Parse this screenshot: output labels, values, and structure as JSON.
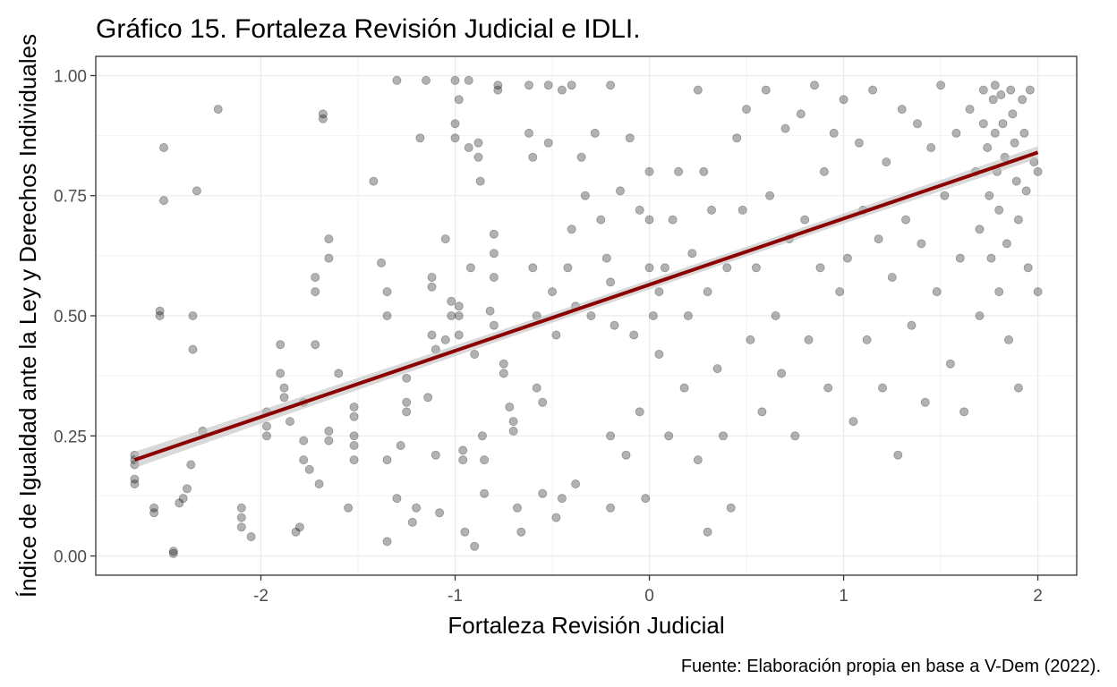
{
  "chart_data": {
    "type": "scatter",
    "title": "Gráfico 15. Fortaleza Revisión Judicial e IDLI.",
    "xlabel": "Fortaleza Revisión Judicial",
    "ylabel": "Índice de Igualdad ante la Ley y Derechos Individuales",
    "caption": "Fuente: Elaboración propia en base a V-Dem (2022).",
    "xlim": [
      -2.85,
      2.2
    ],
    "ylim": [
      -0.04,
      1.04
    ],
    "x_ticks": [
      -2,
      -1,
      0,
      1,
      2
    ],
    "x_tick_labels": [
      "-2",
      "-1",
      "0",
      "1",
      "2"
    ],
    "y_ticks": [
      0,
      0.25,
      0.5,
      0.75,
      1.0
    ],
    "y_tick_labels": [
      "0.00",
      "0.25",
      "0.50",
      "0.75",
      "1.00"
    ],
    "grid": true,
    "point_color": "#000000",
    "point_opacity": 0.3,
    "trend_line": {
      "method": "lm",
      "x": [
        -2.65,
        2.0
      ],
      "y": [
        0.2,
        0.84
      ],
      "color": "#8b0000",
      "ci_color": "#bfbfbf"
    },
    "points": [
      [
        -2.65,
        0.21
      ],
      [
        -2.65,
        0.19
      ],
      [
        -2.65,
        0.15
      ],
      [
        -2.65,
        0.16
      ],
      [
        -2.65,
        0.2
      ],
      [
        -2.55,
        0.1
      ],
      [
        -2.55,
        0.09
      ],
      [
        -2.52,
        0.5
      ],
      [
        -2.52,
        0.51
      ],
      [
        -2.5,
        0.85
      ],
      [
        -2.5,
        0.74
      ],
      [
        -2.45,
        0.01
      ],
      [
        -2.45,
        0.005
      ],
      [
        -2.42,
        0.11
      ],
      [
        -2.4,
        0.12
      ],
      [
        -2.38,
        0.14
      ],
      [
        -2.36,
        0.19
      ],
      [
        -2.35,
        0.5
      ],
      [
        -2.35,
        0.43
      ],
      [
        -2.33,
        0.76
      ],
      [
        -2.3,
        0.26
      ],
      [
        -2.22,
        0.93
      ],
      [
        -2.1,
        0.1
      ],
      [
        -2.1,
        0.08
      ],
      [
        -2.1,
        0.06
      ],
      [
        -2.05,
        0.04
      ],
      [
        -1.97,
        0.3
      ],
      [
        -1.97,
        0.27
      ],
      [
        -1.97,
        0.25
      ],
      [
        -1.9,
        0.44
      ],
      [
        -1.9,
        0.38
      ],
      [
        -1.88,
        0.35
      ],
      [
        -1.88,
        0.33
      ],
      [
        -1.85,
        0.28
      ],
      [
        -1.82,
        0.05
      ],
      [
        -1.8,
        0.06
      ],
      [
        -1.78,
        0.32
      ],
      [
        -1.78,
        0.2
      ],
      [
        -1.78,
        0.24
      ],
      [
        -1.75,
        0.18
      ],
      [
        -1.72,
        0.44
      ],
      [
        -1.72,
        0.55
      ],
      [
        -1.72,
        0.58
      ],
      [
        -1.7,
        0.15
      ],
      [
        -1.68,
        0.91
      ],
      [
        -1.68,
        0.92
      ],
      [
        -1.65,
        0.62
      ],
      [
        -1.65,
        0.66
      ],
      [
        -1.65,
        0.26
      ],
      [
        -1.65,
        0.24
      ],
      [
        -1.6,
        0.38
      ],
      [
        -1.55,
        0.1
      ],
      [
        -1.52,
        0.29
      ],
      [
        -1.52,
        0.31
      ],
      [
        -1.52,
        0.25
      ],
      [
        -1.52,
        0.2
      ],
      [
        -1.52,
        0.23
      ],
      [
        -1.42,
        0.78
      ],
      [
        -1.38,
        0.61
      ],
      [
        -1.35,
        0.5
      ],
      [
        -1.35,
        0.55
      ],
      [
        -1.35,
        0.2
      ],
      [
        -1.35,
        0.03
      ],
      [
        -1.3,
        0.99
      ],
      [
        -1.3,
        0.12
      ],
      [
        -1.28,
        0.23
      ],
      [
        -1.25,
        0.32
      ],
      [
        -1.25,
        0.37
      ],
      [
        -1.25,
        0.3
      ],
      [
        -1.22,
        0.07
      ],
      [
        -1.2,
        0.1
      ],
      [
        -1.18,
        0.87
      ],
      [
        -1.15,
        0.99
      ],
      [
        -1.14,
        0.33
      ],
      [
        -1.12,
        0.58
      ],
      [
        -1.12,
        0.56
      ],
      [
        -1.12,
        0.46
      ],
      [
        -1.1,
        0.43
      ],
      [
        -1.1,
        0.21
      ],
      [
        -1.08,
        0.09
      ],
      [
        -1.05,
        0.66
      ],
      [
        -1.05,
        0.45
      ],
      [
        -1.02,
        0.53
      ],
      [
        -1.02,
        0.5
      ],
      [
        -1.0,
        0.99
      ],
      [
        -1.0,
        0.9
      ],
      [
        -1.0,
        0.87
      ],
      [
        -0.98,
        0.95
      ],
      [
        -0.98,
        0.52
      ],
      [
        -0.98,
        0.5
      ],
      [
        -0.98,
        0.46
      ],
      [
        -0.96,
        0.22
      ],
      [
        -0.96,
        0.2
      ],
      [
        -0.95,
        0.05
      ],
      [
        -0.93,
        0.99
      ],
      [
        -0.93,
        0.85
      ],
      [
        -0.92,
        0.6
      ],
      [
        -0.9,
        0.42
      ],
      [
        -0.9,
        0.02
      ],
      [
        -0.88,
        0.86
      ],
      [
        -0.88,
        0.83
      ],
      [
        -0.87,
        0.78
      ],
      [
        -0.86,
        0.25
      ],
      [
        -0.85,
        0.2
      ],
      [
        -0.85,
        0.13
      ],
      [
        -0.82,
        0.51
      ],
      [
        -0.8,
        0.48
      ],
      [
        -0.8,
        0.58
      ],
      [
        -0.8,
        0.63
      ],
      [
        -0.8,
        0.67
      ],
      [
        -0.78,
        0.98
      ],
      [
        -0.78,
        0.97
      ],
      [
        -0.75,
        0.4
      ],
      [
        -0.75,
        0.38
      ],
      [
        -0.72,
        0.31
      ],
      [
        -0.7,
        0.28
      ],
      [
        -0.7,
        0.26
      ],
      [
        -0.68,
        0.1
      ],
      [
        -0.66,
        0.05
      ],
      [
        -0.62,
        0.98
      ],
      [
        -0.62,
        0.88
      ],
      [
        -0.6,
        0.83
      ],
      [
        -0.6,
        0.6
      ],
      [
        -0.58,
        0.5
      ],
      [
        -0.58,
        0.35
      ],
      [
        -0.55,
        0.32
      ],
      [
        -0.55,
        0.13
      ],
      [
        -0.52,
        0.98
      ],
      [
        -0.52,
        0.86
      ],
      [
        -0.5,
        0.55
      ],
      [
        -0.48,
        0.46
      ],
      [
        -0.48,
        0.08
      ],
      [
        -0.45,
        0.97
      ],
      [
        -0.45,
        0.12
      ],
      [
        -0.42,
        0.6
      ],
      [
        -0.4,
        0.98
      ],
      [
        -0.4,
        0.68
      ],
      [
        -0.38,
        0.52
      ],
      [
        -0.38,
        0.15
      ],
      [
        -0.35,
        0.83
      ],
      [
        -0.33,
        0.75
      ],
      [
        -0.3,
        0.5
      ],
      [
        -0.28,
        0.88
      ],
      [
        -0.25,
        0.7
      ],
      [
        -0.22,
        0.62
      ],
      [
        -0.2,
        0.98
      ],
      [
        -0.2,
        0.57
      ],
      [
        -0.2,
        0.25
      ],
      [
        -0.2,
        0.1
      ],
      [
        -0.18,
        0.48
      ],
      [
        -0.15,
        0.76
      ],
      [
        -0.12,
        0.21
      ],
      [
        -0.1,
        0.87
      ],
      [
        -0.08,
        0.46
      ],
      [
        -0.05,
        0.72
      ],
      [
        -0.05,
        0.3
      ],
      [
        -0.02,
        0.12
      ],
      [
        0.0,
        0.8
      ],
      [
        0.0,
        0.7
      ],
      [
        0.0,
        0.6
      ],
      [
        0.02,
        0.5
      ],
      [
        0.05,
        0.55
      ],
      [
        0.05,
        0.42
      ],
      [
        0.08,
        0.6
      ],
      [
        0.1,
        0.25
      ],
      [
        0.12,
        0.7
      ],
      [
        0.15,
        0.8
      ],
      [
        0.18,
        0.35
      ],
      [
        0.2,
        0.5
      ],
      [
        0.22,
        0.63
      ],
      [
        0.25,
        0.97
      ],
      [
        0.25,
        0.2
      ],
      [
        0.28,
        0.8
      ],
      [
        0.3,
        0.55
      ],
      [
        0.3,
        0.05
      ],
      [
        0.32,
        0.72
      ],
      [
        0.35,
        0.39
      ],
      [
        0.38,
        0.25
      ],
      [
        0.4,
        0.6
      ],
      [
        0.42,
        0.1
      ],
      [
        0.45,
        0.87
      ],
      [
        0.48,
        0.72
      ],
      [
        0.5,
        0.93
      ],
      [
        0.52,
        0.45
      ],
      [
        0.55,
        0.6
      ],
      [
        0.58,
        0.3
      ],
      [
        0.6,
        0.97
      ],
      [
        0.62,
        0.75
      ],
      [
        0.65,
        0.5
      ],
      [
        0.68,
        0.38
      ],
      [
        0.7,
        0.89
      ],
      [
        0.72,
        0.66
      ],
      [
        0.75,
        0.25
      ],
      [
        0.78,
        0.92
      ],
      [
        0.8,
        0.7
      ],
      [
        0.82,
        0.45
      ],
      [
        0.85,
        0.98
      ],
      [
        0.88,
        0.6
      ],
      [
        0.9,
        0.8
      ],
      [
        0.92,
        0.35
      ],
      [
        0.95,
        0.88
      ],
      [
        0.98,
        0.55
      ],
      [
        1.0,
        0.95
      ],
      [
        1.02,
        0.62
      ],
      [
        1.05,
        0.28
      ],
      [
        1.08,
        0.86
      ],
      [
        1.1,
        0.72
      ],
      [
        1.12,
        0.45
      ],
      [
        1.15,
        0.97
      ],
      [
        1.18,
        0.66
      ],
      [
        1.2,
        0.35
      ],
      [
        1.22,
        0.82
      ],
      [
        1.25,
        0.58
      ],
      [
        1.28,
        0.21
      ],
      [
        1.3,
        0.93
      ],
      [
        1.32,
        0.7
      ],
      [
        1.35,
        0.48
      ],
      [
        1.38,
        0.9
      ],
      [
        1.4,
        0.65
      ],
      [
        1.42,
        0.32
      ],
      [
        1.45,
        0.85
      ],
      [
        1.48,
        0.55
      ],
      [
        1.5,
        0.98
      ],
      [
        1.52,
        0.75
      ],
      [
        1.55,
        0.4
      ],
      [
        1.58,
        0.88
      ],
      [
        1.6,
        0.62
      ],
      [
        1.62,
        0.3
      ],
      [
        1.65,
        0.93
      ],
      [
        1.68,
        0.8
      ],
      [
        1.7,
        0.68
      ],
      [
        1.7,
        0.5
      ],
      [
        1.72,
        0.97
      ],
      [
        1.72,
        0.9
      ],
      [
        1.74,
        0.85
      ],
      [
        1.75,
        0.75
      ],
      [
        1.76,
        0.62
      ],
      [
        1.77,
        0.95
      ],
      [
        1.78,
        0.98
      ],
      [
        1.78,
        0.88
      ],
      [
        1.79,
        0.8
      ],
      [
        1.8,
        0.72
      ],
      [
        1.8,
        0.55
      ],
      [
        1.81,
        0.96
      ],
      [
        1.82,
        0.9
      ],
      [
        1.83,
        0.83
      ],
      [
        1.84,
        0.65
      ],
      [
        1.85,
        0.45
      ],
      [
        1.86,
        0.97
      ],
      [
        1.87,
        0.92
      ],
      [
        1.88,
        0.86
      ],
      [
        1.89,
        0.78
      ],
      [
        1.9,
        0.7
      ],
      [
        1.9,
        0.35
      ],
      [
        1.92,
        0.95
      ],
      [
        1.93,
        0.88
      ],
      [
        1.94,
        0.76
      ],
      [
        1.95,
        0.6
      ],
      [
        1.96,
        0.97
      ],
      [
        1.98,
        0.82
      ],
      [
        2.0,
        0.8
      ],
      [
        2.0,
        0.55
      ]
    ]
  }
}
